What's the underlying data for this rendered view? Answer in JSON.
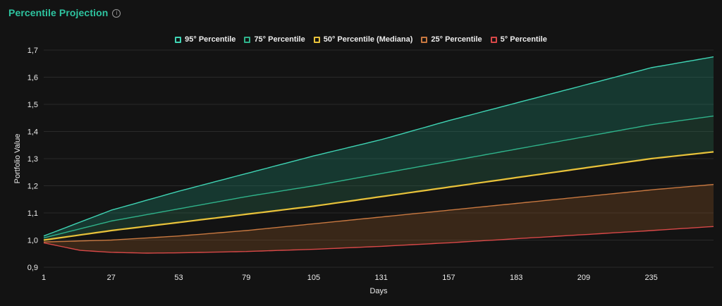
{
  "header": {
    "title": "Percentile Projection",
    "info_icon": "info-icon"
  },
  "colors": {
    "background": "#131313",
    "grid": "#2a2a2a",
    "title": "#2ec4a0"
  },
  "chart_data": {
    "type": "line",
    "xlabel": "Days",
    "ylabel": "Portfolio Value",
    "xlim": [
      1,
      259
    ],
    "ylim": [
      0.9,
      1.7
    ],
    "xticks": [
      1,
      27,
      53,
      79,
      105,
      131,
      157,
      183,
      209,
      235
    ],
    "yticks": [
      0.9,
      1.0,
      1.1,
      1.2,
      1.3,
      1.4,
      1.5,
      1.6,
      1.7
    ],
    "ytick_labels": [
      "0,9",
      "1,0",
      "1,1",
      "1,2",
      "1,3",
      "1,4",
      "1,5",
      "1,6",
      "1,7"
    ],
    "grid": true,
    "legend_position": "top-center",
    "series": [
      {
        "name": "95° Percentile",
        "color": "#3fd4b4",
        "x": [
          1,
          27,
          53,
          79,
          105,
          131,
          157,
          183,
          209,
          235,
          259
        ],
        "values": [
          1.015,
          1.11,
          1.18,
          1.245,
          1.31,
          1.37,
          1.44,
          1.505,
          1.57,
          1.635,
          1.675
        ]
      },
      {
        "name": "75° Percentile",
        "color": "#2fb28a",
        "x": [
          1,
          27,
          53,
          79,
          105,
          131,
          157,
          183,
          209,
          235,
          259
        ],
        "values": [
          1.008,
          1.07,
          1.115,
          1.16,
          1.2,
          1.245,
          1.29,
          1.335,
          1.38,
          1.425,
          1.457
        ]
      },
      {
        "name": "50° Percentile (Mediana)",
        "color": "#e8c23a",
        "x": [
          1,
          27,
          53,
          79,
          105,
          131,
          157,
          183,
          209,
          235,
          259
        ],
        "values": [
          1.0,
          1.035,
          1.065,
          1.095,
          1.125,
          1.16,
          1.195,
          1.23,
          1.265,
          1.3,
          1.325
        ]
      },
      {
        "name": "25° Percentile",
        "color": "#c87840",
        "x": [
          1,
          27,
          53,
          79,
          105,
          131,
          157,
          183,
          209,
          235,
          259
        ],
        "values": [
          0.993,
          1.0,
          1.015,
          1.035,
          1.06,
          1.085,
          1.11,
          1.135,
          1.16,
          1.185,
          1.205
        ]
      },
      {
        "name": "5° Percentile",
        "color": "#d84848",
        "x": [
          1,
          15,
          27,
          40,
          53,
          79,
          105,
          131,
          157,
          183,
          209,
          235,
          259
        ],
        "values": [
          0.99,
          0.962,
          0.955,
          0.952,
          0.953,
          0.958,
          0.966,
          0.977,
          0.99,
          1.005,
          1.02,
          1.035,
          1.05
        ]
      }
    ]
  }
}
